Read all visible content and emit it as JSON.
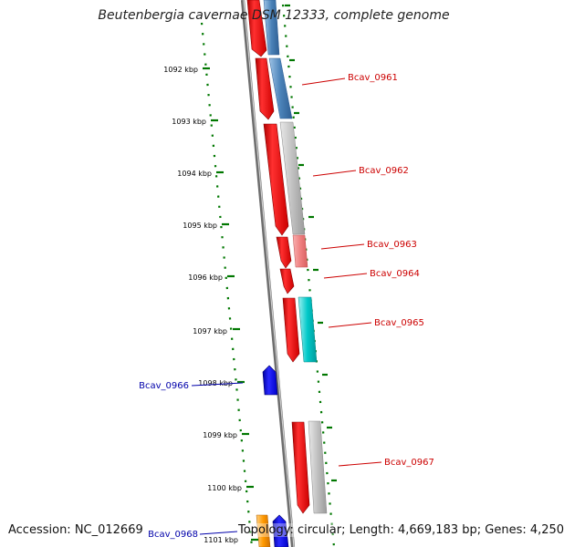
{
  "title": "Beutenbergia cavernae DSM 12333, complete genome",
  "footer": {
    "accession": "Accession: NC_012669",
    "summary": "Topology: circular; Length: 4,669,183 bp; Genes: 4,250"
  },
  "kbp_ticks": [
    "1092 kbp",
    "1093 kbp",
    "1094 kbp",
    "1095 kbp",
    "1096 kbp",
    "1097 kbp",
    "1098 kbp",
    "1099 kbp",
    "1100 kbp",
    "1101 kbp"
  ],
  "gene_labels": [
    {
      "name": "Bcav_0961",
      "color": "#cc0000",
      "strand": "forward"
    },
    {
      "name": "Bcav_0962",
      "color": "#cc0000",
      "strand": "forward"
    },
    {
      "name": "Bcav_0963",
      "color": "#cc0000",
      "strand": "forward"
    },
    {
      "name": "Bcav_0964",
      "color": "#cc0000",
      "strand": "forward"
    },
    {
      "name": "Bcav_0965",
      "color": "#cc0000",
      "strand": "forward"
    },
    {
      "name": "Bcav_0966",
      "color": "#0000aa",
      "strand": "reverse"
    },
    {
      "name": "Bcav_0967",
      "color": "#cc0000",
      "strand": "forward"
    },
    {
      "name": "Bcav_0968",
      "color": "#0000aa",
      "strand": "reverse"
    }
  ],
  "colors": {
    "forward_gene": "#ff0000",
    "reverse_gene": "#0000ff",
    "backbone": "#808080",
    "tick": "#007700",
    "cog_steelblue": "#4a82b8",
    "cog_gray": "#b8b8b8",
    "cog_pink": "#f08080",
    "cog_cyan": "#00c8c8",
    "cog_orange": "#ff9900"
  }
}
